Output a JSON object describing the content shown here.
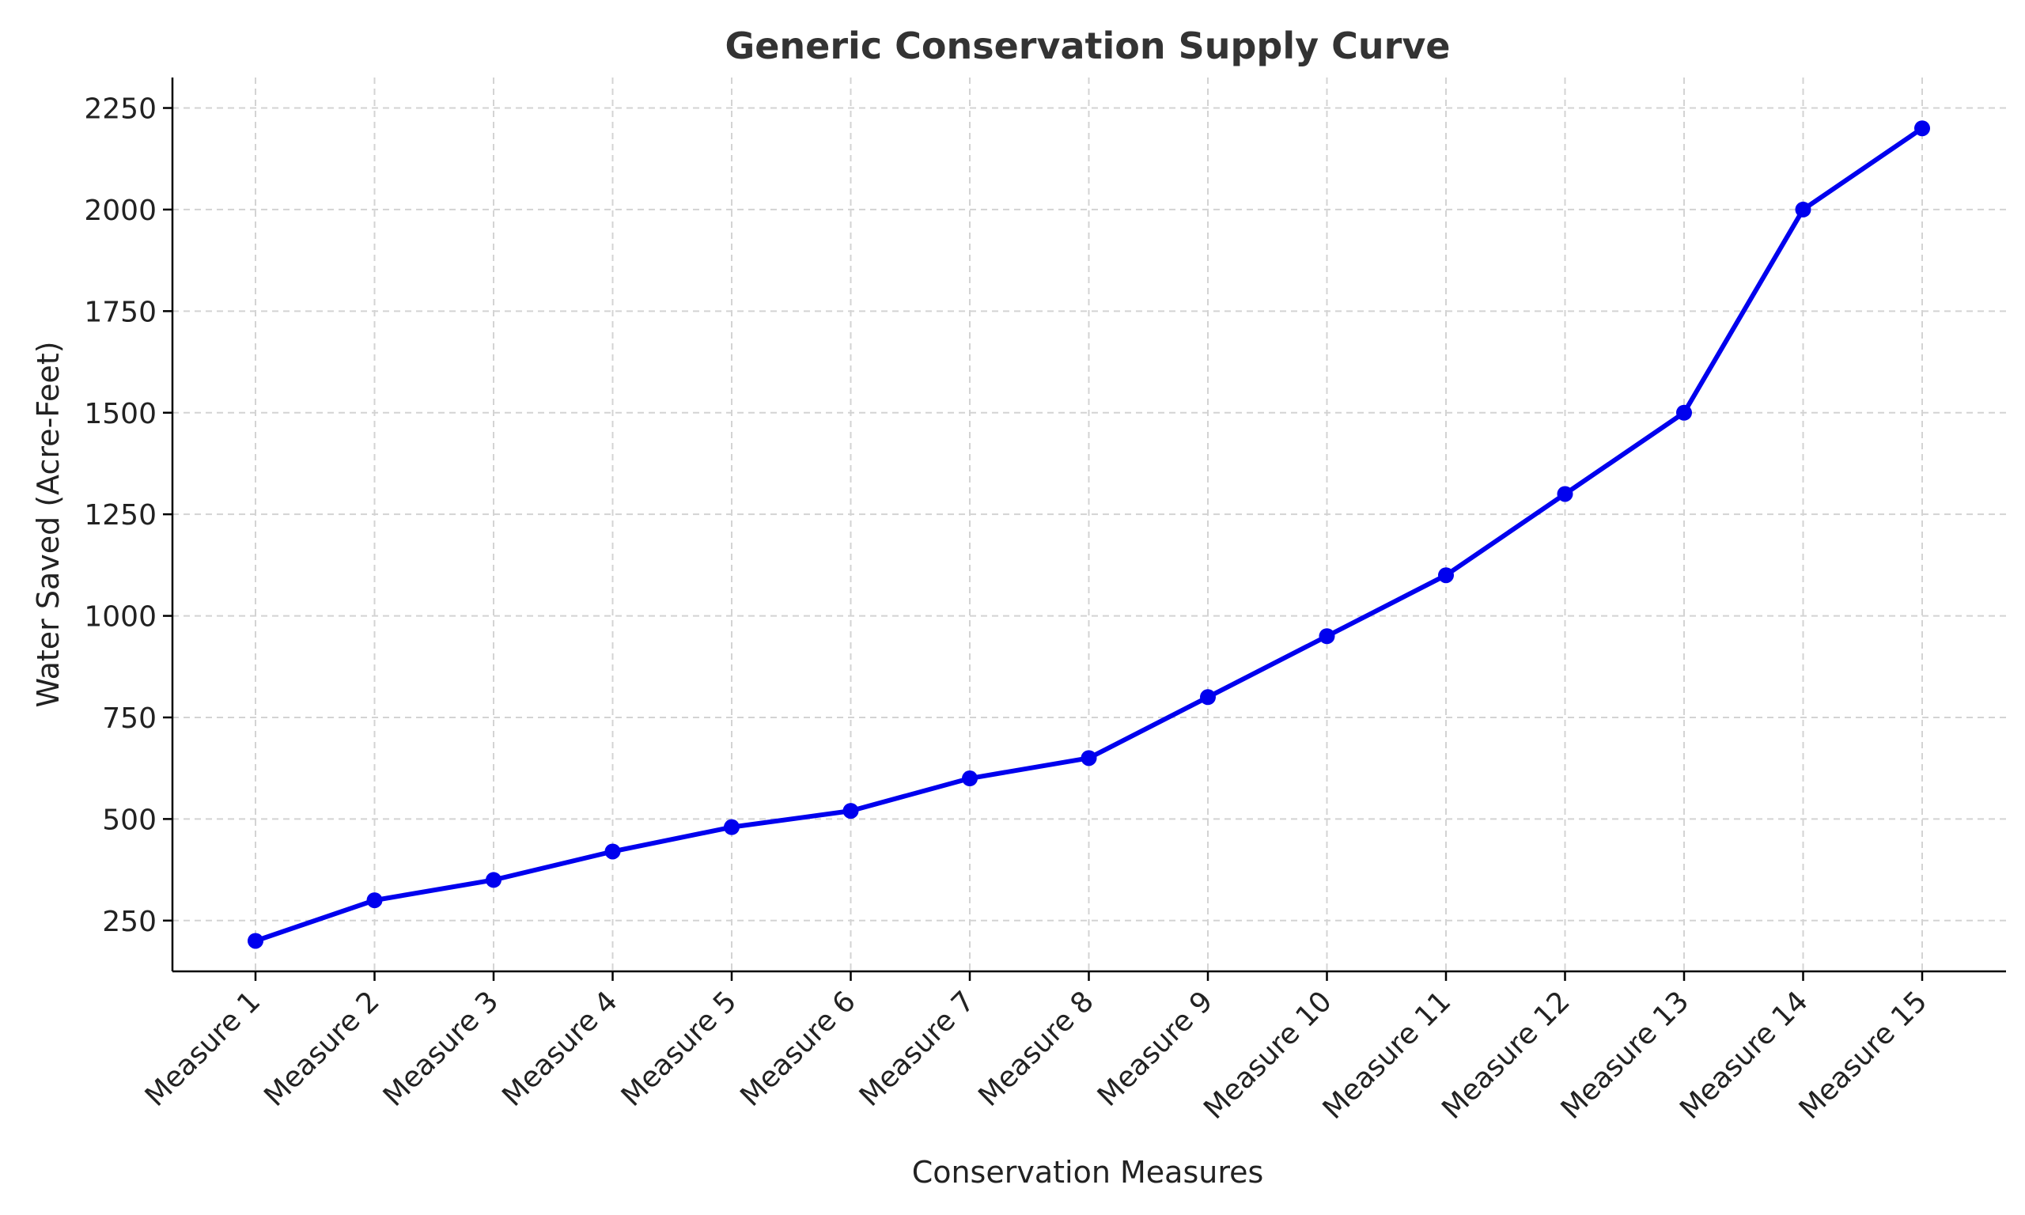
{
  "chart_data": {
    "type": "line",
    "title": "Generic Conservation Supply Curve",
    "xlabel": "Conservation Measures",
    "ylabel": "Water Saved (Acre-Feet)",
    "categories": [
      "Measure 1",
      "Measure 2",
      "Measure 3",
      "Measure 4",
      "Measure 5",
      "Measure 6",
      "Measure 7",
      "Measure 8",
      "Measure 9",
      "Measure 10",
      "Measure 11",
      "Measure 12",
      "Measure 13",
      "Measure 14",
      "Measure 15"
    ],
    "series": [
      {
        "values": [
          200,
          300,
          350,
          420,
          480,
          520,
          600,
          650,
          800,
          950,
          1100,
          1300,
          1500,
          2000,
          2200
        ],
        "color": "#0000ee",
        "marker": "circle"
      }
    ],
    "yticks": [
      250,
      500,
      750,
      1000,
      1250,
      1500,
      1750,
      2000,
      2250
    ],
    "ylim": [
      125,
      2325
    ],
    "grid": true,
    "grid_style": "dashed",
    "legend": "none"
  }
}
